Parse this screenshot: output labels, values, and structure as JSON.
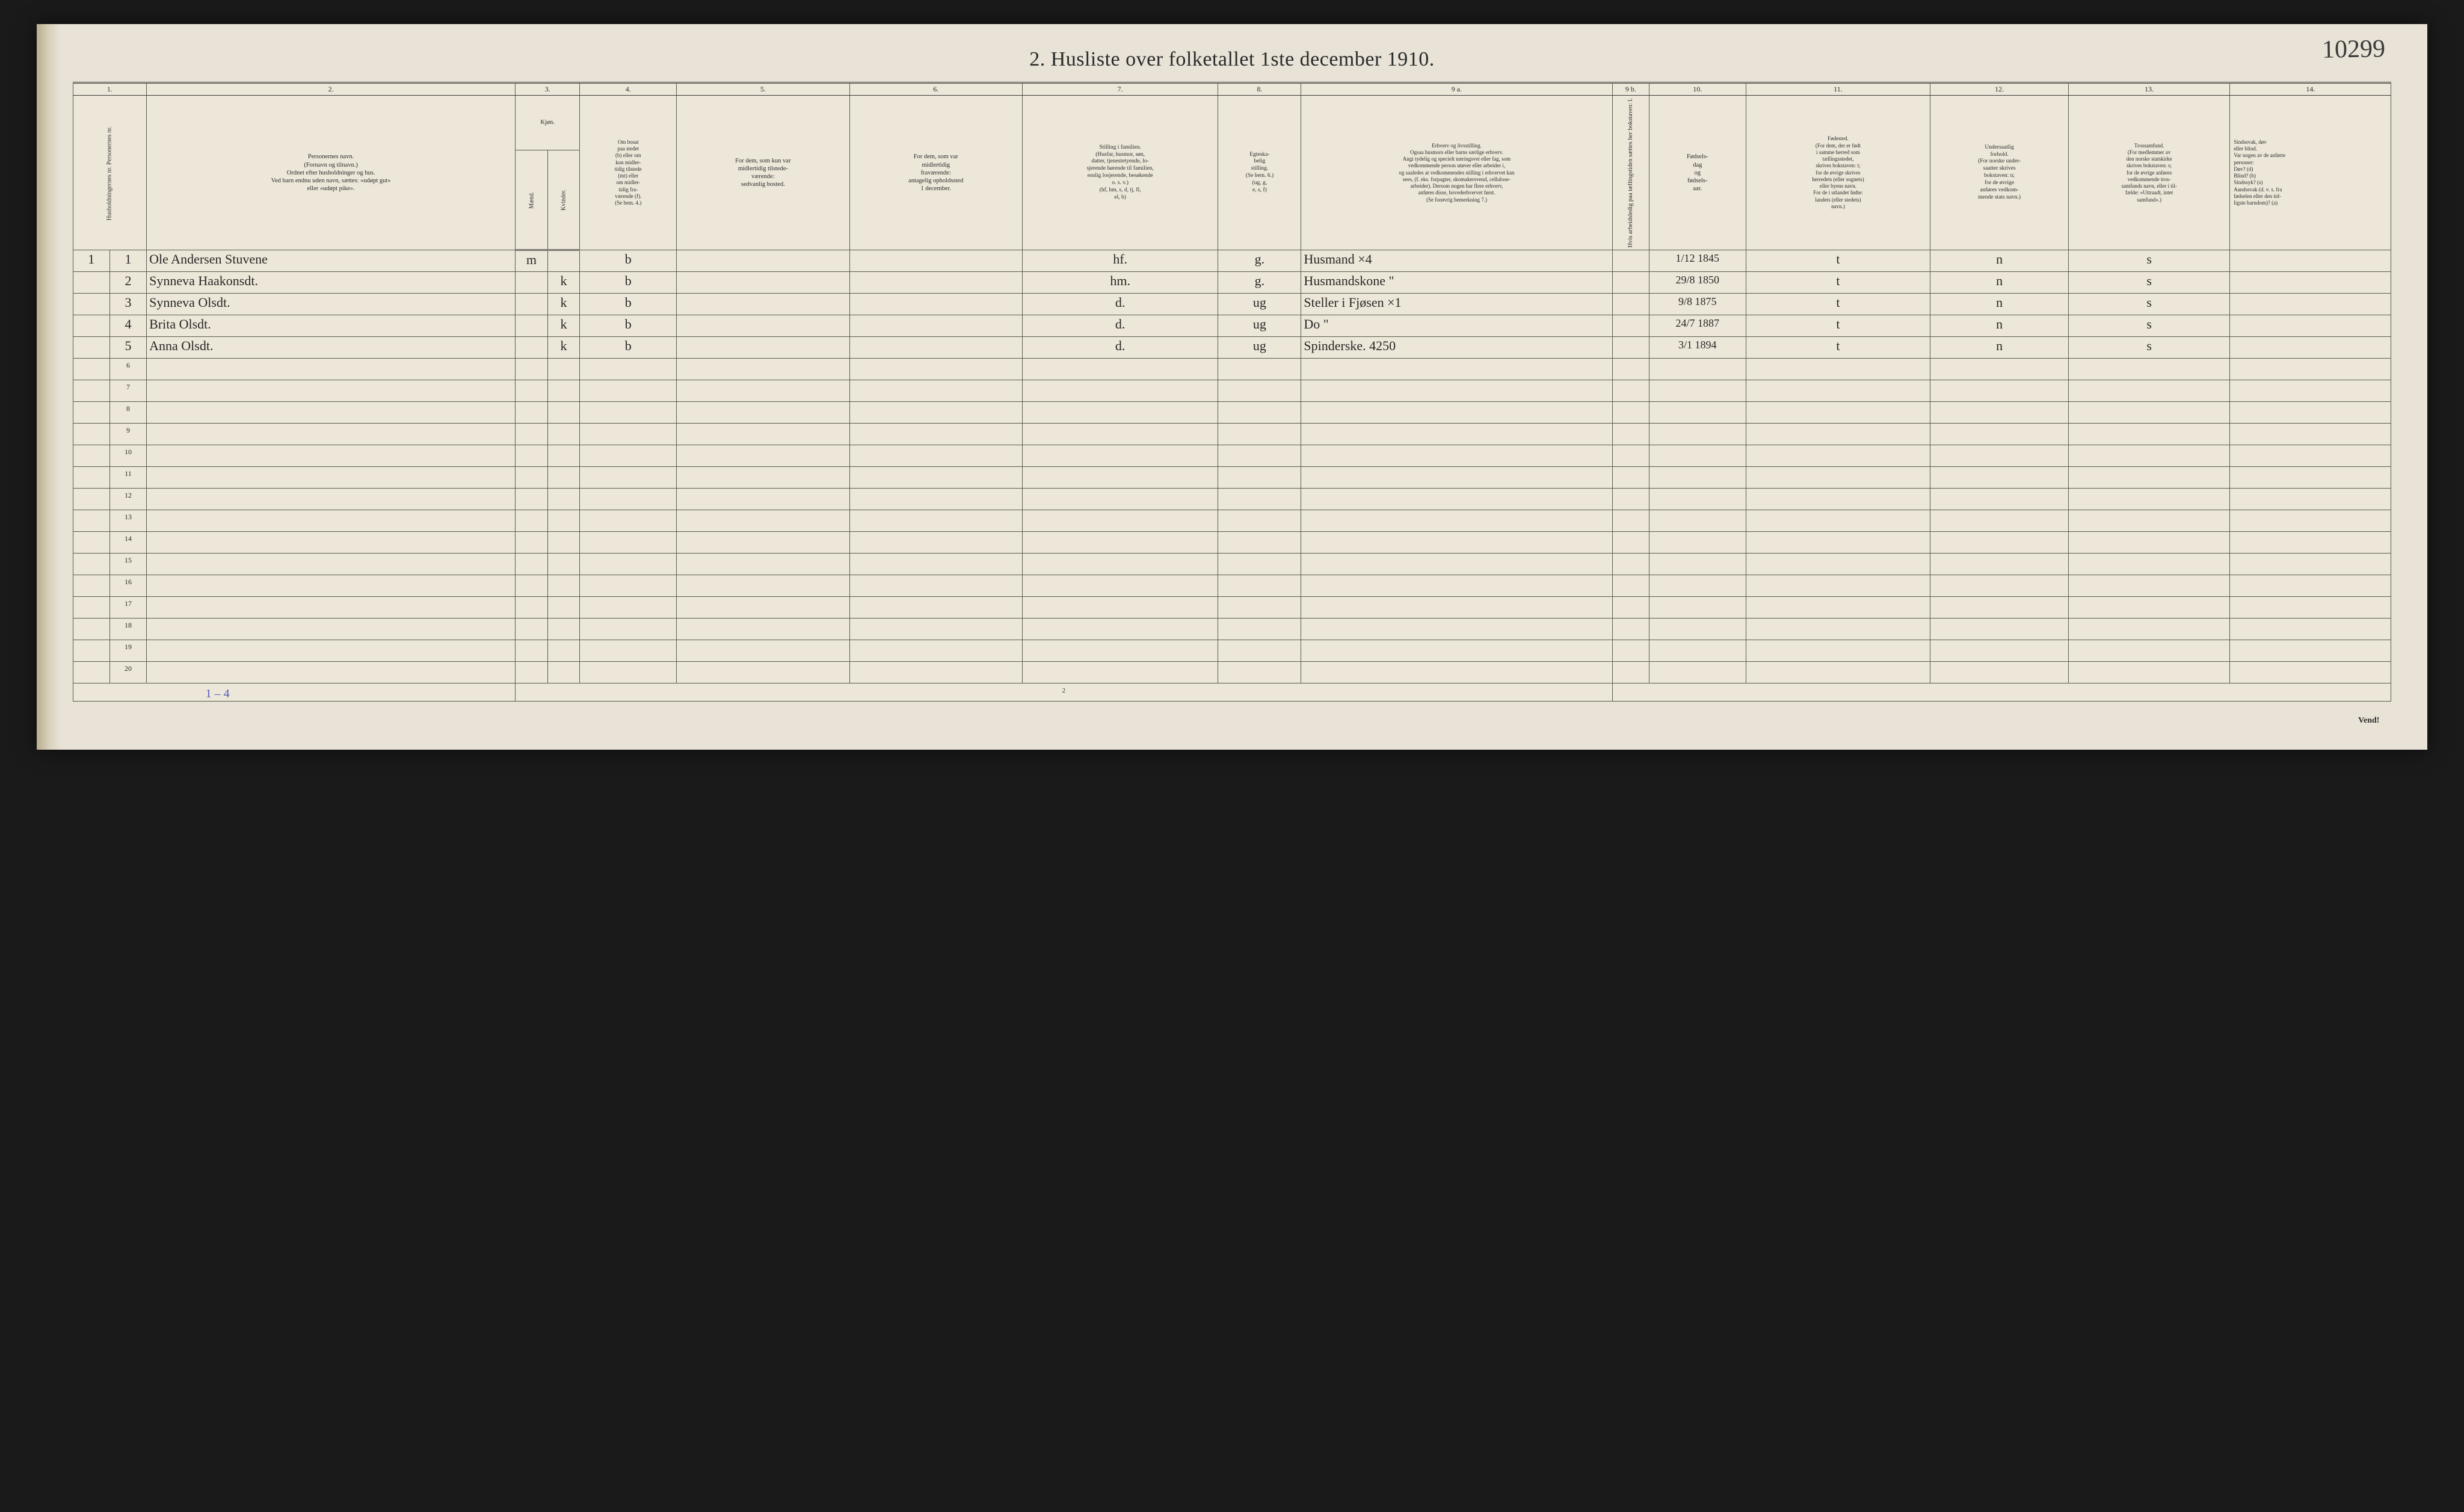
{
  "page_number_handwritten": "10299",
  "title": "2.  Husliste over folketallet 1ste december 1910.",
  "colors": {
    "page_bg": "#e8e3d6",
    "ink": "#2a2a2a",
    "handwriting": "#2a2826",
    "border": "#5a5a4a",
    "outer_bg": "#1a1a1a",
    "annotation_ink": "#5a5ab8"
  },
  "col_numbers": [
    "1.",
    "2.",
    "3.",
    "4.",
    "5.",
    "6.",
    "7.",
    "8.",
    "9 a.",
    "9 b.",
    "10.",
    "11.",
    "12.",
    "13.",
    "14."
  ],
  "headers": {
    "c1": "Husholdningernes nr.\nPersonernes nr.",
    "c2": "Personernes navn.\n(Fornavn og tilnavn.)\nOrdnet efter husholdninger og hus.\nVed barn endnu uden navn, sættes: «udøpt gut»\neller «udøpt pike».",
    "c3": "Kjøn.",
    "c3a": "Mænd.",
    "c3b": "Kvinder.",
    "c3sub": "m.  k.",
    "c4": "Om bosat\npaa stedet\n(b) eller om\nkun midler-\ntidig tilstede\n(mt) eller\nom midler-\ntidig fra-\nværende (f).\n(Se bem. 4.)",
    "c5": "For dem, som kun var\nmidlertidig tilstede-\nværende:\nsedvanlig bosted.",
    "c6": "For dem, som var\nmidlertidig\nfraværende:\nantagelig opholdssted\n1 december.",
    "c7": "Stilling i familien.\n(Husfar, husmor, søn,\ndatter, tjenestetyende, lo-\nsjerende hørende til familien,\nenslig losjerende, besøkende\no. s. v.)\n(hf, hm, s, d, tj, fl,\nel, b)",
    "c8": "Egteska-\nbelig\nstilling.\n(Se bem. 6.)\n(ug, g,\ne, s, f)",
    "c9a": "Erhverv og livsstilling.\nOgsaa husmors eller barns særlige erhverv.\nAngi tydelig og specielt næringsvei eller fag, som\nvedkommende person utøver eller arbeider i,\nog saaledes at vedkommendes stilling i erhvervet kan\nsees, (f. eks. forpagter, skomakersvend, cellulose-\narbeider). Dersom nogen har flere erhverv,\nanføres disse, hovederhvervet først.\n(Se forøvrig bemerkning 7.)",
    "c9b": "Hvis arbeidsledig\npaa tællingstiden sættes\nher bokstaven: l.",
    "c10": "Fødsels-\ndag\nog\nfødsels-\naar.",
    "c11": "Fødested.\n(For dem, der er født\ni samme herred som\ntællingsstedet,\nskrives bokstaven: t;\nfor de øvrige skrives\nherredets (eller sognets)\neller byens navn.\nFor de i utlandet fødte:\nlandets (eller stedets)\nnavn.)",
    "c12": "Undersaatlig\nforhold.\n(For norske under-\nsaatter skrives\nbokstaven: n;\nfor de øvrige\nanføres vedkom-\nmende stats navn.)",
    "c13": "Trossamfund.\n(For medlemmer av\nden norske statskirke\nskrives bokstaven: s;\nfor de øvrige anføres\nvedkommende tros-\nsamfunds navn, eller i til-\nfælde: «Uttraadt, intet\nsamfund».)",
    "c14": "Sindssvak, døv\neller blind.\nVar nogen av de anførte\npersoner:\nDøv?       (d)\nBlind?     (b)\nSindssyk?  (s)\nAandssvak (d. v. s. fra\nfødselen eller den tid-\nligste barndom)? (a)"
  },
  "rows": [
    {
      "hh": "1",
      "pn": "1",
      "name": "Ole Andersen Stuvene",
      "sex_m": "m",
      "sex_k": "",
      "bosat": "b",
      "c5": "",
      "c6": "",
      "stilling": "hf.",
      "egte": "g.",
      "erhverv": "Husmand        ×4",
      "c9b": "",
      "fod": "1/12 1845",
      "fodested": "t",
      "under": "n",
      "tros": "s",
      "c14": ""
    },
    {
      "hh": "",
      "pn": "2",
      "name": "Synneva Haakonsdt.",
      "sex_m": "",
      "sex_k": "k",
      "bosat": "b",
      "c5": "",
      "c6": "",
      "stilling": "hm.",
      "egte": "g.",
      "erhverv": "Husmandskone    \"",
      "c9b": "",
      "fod": "29/8 1850",
      "fodested": "t",
      "under": "n",
      "tros": "s",
      "c14": ""
    },
    {
      "hh": "",
      "pn": "3",
      "name": "Synneva Olsdt.",
      "sex_m": "",
      "sex_k": "k",
      "bosat": "b",
      "c5": "",
      "c6": "",
      "stilling": "d.",
      "egte": "ug",
      "erhverv": "Steller i Fjøsen   ×1",
      "c9b": "",
      "fod": "9/8 1875",
      "fodested": "t",
      "under": "n",
      "tros": "s",
      "c14": ""
    },
    {
      "hh": "",
      "pn": "4",
      "name": "Brita Olsdt.",
      "sex_m": "",
      "sex_k": "k",
      "bosat": "b",
      "c5": "",
      "c6": "",
      "stilling": "d.",
      "egte": "ug",
      "erhverv": "Do             \"",
      "c9b": "",
      "fod": "24/7 1887",
      "fodested": "t",
      "under": "n",
      "tros": "s",
      "c14": ""
    },
    {
      "hh": "",
      "pn": "5",
      "name": "Anna Olsdt.",
      "sex_m": "",
      "sex_k": "k",
      "bosat": "b",
      "c5": "",
      "c6": "",
      "stilling": "d.",
      "egte": "ug",
      "erhverv": "Spinderske.    4250",
      "c9b": "",
      "fod": "3/1 1894",
      "fodested": "t",
      "under": "n",
      "tros": "s",
      "c14": ""
    }
  ],
  "empty_row_labels": [
    "6",
    "7",
    "8",
    "9",
    "10",
    "11",
    "12",
    "13",
    "14",
    "15",
    "16",
    "17",
    "18",
    "19",
    "20"
  ],
  "foot_pagenum": "2",
  "foot_annotation": "1 – 4",
  "vend": "Vend!"
}
